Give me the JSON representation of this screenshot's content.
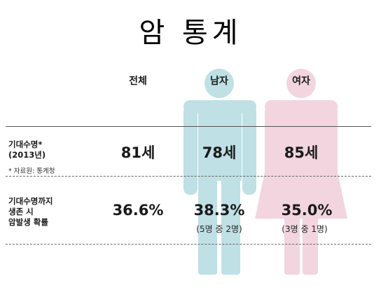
{
  "title": "암 통계",
  "columns": {
    "total": "전체",
    "male": "남자",
    "female": "여자"
  },
  "rows": [
    {
      "label_lines": [
        "기대수명*",
        "(2013년)"
      ],
      "note": "* 자료원: 통계청",
      "total": "81세",
      "male": "78세",
      "female": "85세"
    },
    {
      "label_lines": [
        "기대수명까지",
        "생존 시",
        "암발생 확률"
      ],
      "total": "36.6%",
      "male": "38.3%",
      "male_sub": "(5명 중 2명)",
      "female": "35.0%",
      "female_sub": "(3명 중 1명)"
    }
  ],
  "colors": {
    "male_figure": "#bfe0e4",
    "female_figure": "#f2d5df"
  },
  "icons": [
    "male-person-icon",
    "female-person-icon"
  ]
}
